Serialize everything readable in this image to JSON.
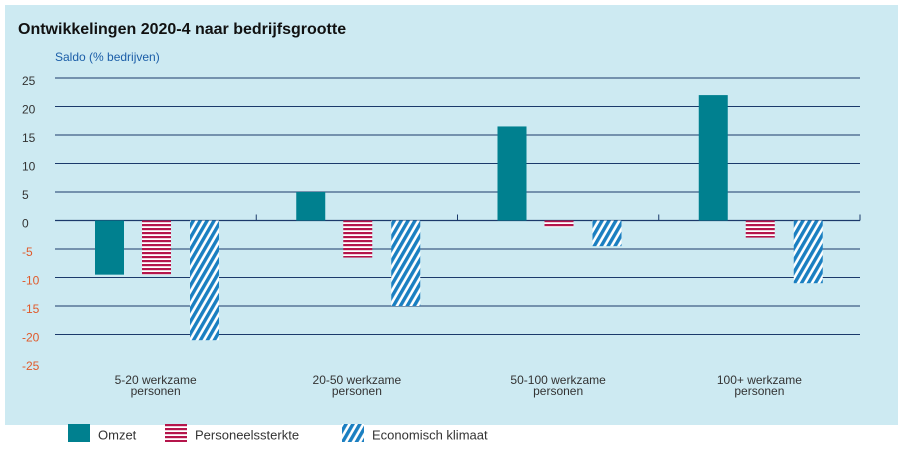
{
  "chart_data": {
    "type": "bar",
    "title": "Ontwikkelingen 2020-4 naar bedrijfsgrootte",
    "y_label": "Saldo (% bedrijven)",
    "categories": [
      "5-20 werkzame personen",
      "20-50 werkzame personen",
      "50-100 werkzame personen",
      "100+ werkzame personen"
    ],
    "series": [
      {
        "name": "Omzet",
        "color": "#00808f",
        "pattern": "solid",
        "values": [
          -9.5,
          5,
          16.5,
          22
        ]
      },
      {
        "name": "Personeelssterkte",
        "color": "#b5154b",
        "pattern": "horizontal",
        "values": [
          -9.5,
          -6.5,
          -1.2,
          -3
        ]
      },
      {
        "name": "Economisch klimaat",
        "color": "#1a7fc1",
        "pattern": "diagonal",
        "values": [
          -21,
          -15,
          -4.5,
          -11
        ]
      }
    ],
    "ylim": [
      -25,
      25
    ],
    "yticks": [
      -25,
      -20,
      -15,
      -10,
      -5,
      0,
      5,
      10,
      15,
      20,
      25
    ],
    "grid": true,
    "negative_tick_color": "#e05a2b",
    "legend": "bottom"
  }
}
